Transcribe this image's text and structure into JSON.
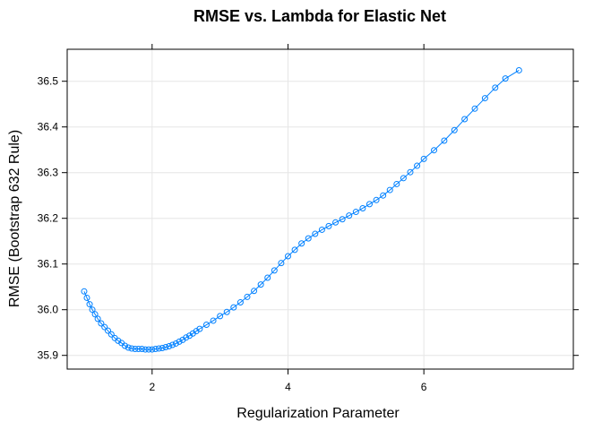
{
  "chart_data": {
    "type": "line",
    "title": "RMSE vs. Lambda for Elastic Net",
    "xlabel": "Regularization Parameter",
    "ylabel": "RMSE (Bootstrap 632 Rule)",
    "xlim": [
      0.75,
      8.2
    ],
    "ylim": [
      35.87,
      36.57
    ],
    "xticks": [
      2,
      4,
      6
    ],
    "yticks": [
      35.9,
      36.0,
      36.1,
      36.2,
      36.3,
      36.4,
      36.5
    ],
    "xtick_labels": [
      "2",
      "4",
      "6"
    ],
    "ytick_labels": [
      "35.9",
      "36.0",
      "36.1",
      "36.2",
      "36.3",
      "36.4",
      "36.5"
    ],
    "grid": true,
    "series_color": "#0080ff",
    "series": [
      {
        "marker": "open-circle",
        "x": [
          1.0,
          1.04,
          1.08,
          1.12,
          1.16,
          1.2,
          1.25,
          1.3,
          1.35,
          1.4,
          1.45,
          1.5,
          1.55,
          1.6,
          1.65,
          1.7,
          1.75,
          1.8,
          1.85,
          1.9,
          1.95,
          2.0,
          2.05,
          2.1,
          2.15,
          2.2,
          2.25,
          2.3,
          2.35,
          2.4,
          2.45,
          2.5,
          2.55,
          2.6,
          2.65,
          2.7,
          2.8,
          2.9,
          3.0,
          3.1,
          3.2,
          3.3,
          3.4,
          3.5,
          3.6,
          3.7,
          3.8,
          3.9,
          4.0,
          4.1,
          4.2,
          4.3,
          4.4,
          4.5,
          4.6,
          4.7,
          4.8,
          4.9,
          5.0,
          5.1,
          5.2,
          5.3,
          5.4,
          5.5,
          5.6,
          5.7,
          5.8,
          5.9,
          6.0,
          6.15,
          6.3,
          6.45,
          6.6,
          6.75,
          6.9,
          7.05,
          7.2,
          7.4
        ],
        "y": [
          36.04,
          36.026,
          36.012,
          36.0,
          35.99,
          35.98,
          35.97,
          35.962,
          35.954,
          35.946,
          35.938,
          35.932,
          35.927,
          35.921,
          35.917,
          35.915,
          35.914,
          35.914,
          35.914,
          35.913,
          35.913,
          35.913,
          35.914,
          35.915,
          35.916,
          35.918,
          35.92,
          35.923,
          35.926,
          35.93,
          35.934,
          35.939,
          35.943,
          35.948,
          35.953,
          35.958,
          35.967,
          35.976,
          35.986,
          35.995,
          36.005,
          36.016,
          36.028,
          36.041,
          36.055,
          36.07,
          36.086,
          36.102,
          36.117,
          36.131,
          36.145,
          36.156,
          36.166,
          36.175,
          36.183,
          36.191,
          36.198,
          36.206,
          36.214,
          36.222,
          36.231,
          36.24,
          36.25,
          36.262,
          36.275,
          36.288,
          36.301,
          36.315,
          36.33,
          36.349,
          36.37,
          36.393,
          36.417,
          36.44,
          36.463,
          36.486,
          36.506,
          36.524
        ]
      }
    ]
  }
}
